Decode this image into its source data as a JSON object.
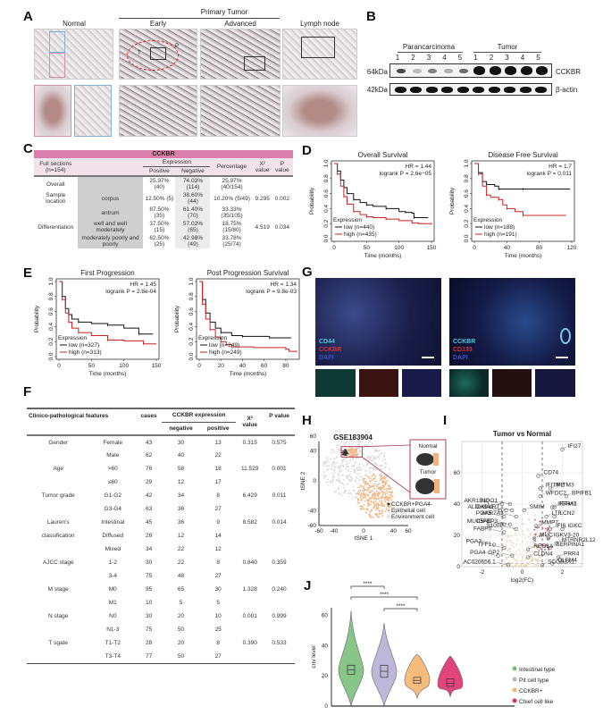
{
  "panels": {
    "A": {
      "letter": "A",
      "group_label": "Primary Tumor",
      "columns": [
        "Normal",
        "Early",
        "Advanced",
        "Lymph node"
      ],
      "annotations": [
        "T",
        "P"
      ]
    },
    "B": {
      "letter": "B",
      "groups": [
        "Parancarcinoma",
        "Tumor"
      ],
      "lanes": [
        "1",
        "2",
        "3",
        "4",
        "5",
        "1",
        "2",
        "3",
        "4",
        "5"
      ],
      "markers": [
        "64kDa",
        "42kDa"
      ],
      "proteins": [
        "CCKBR",
        "β-actin"
      ]
    },
    "C": {
      "letter": "C",
      "title": "CCKBR",
      "headers": {
        "full_sections": "Full sections",
        "n": "(n=154)",
        "expression": "Expression",
        "positive": "Positive",
        "negative": "Negative",
        "percentage": "Percentage",
        "chi": "X²",
        "chi2": "value",
        "p": "P value"
      },
      "rows": [
        {
          "feature": "Overall",
          "sub": "",
          "positive": "25.97% (40)",
          "negative": "74.03% (114)",
          "percentage": "25.97% (40/154)",
          "chi": "",
          "p": ""
        },
        {
          "feature": "Sample location",
          "sub": "corpus",
          "positive": "12.50% (5)",
          "negative": "38.60% (44)",
          "percentage": "10.20% (5/49)",
          "chi": "9.295",
          "p": "0.002"
        },
        {
          "feature": "",
          "sub": "antrum",
          "positive": "87.50% (35)",
          "negative": "61.40% (70)",
          "percentage": "33.33% (35/105)",
          "chi": "",
          "p": ""
        },
        {
          "feature": "Differentiation",
          "sub": "well and well moderately",
          "positive": "37.50% (15)",
          "negative": "57.02% (65)",
          "percentage": "18.75% (15/80)",
          "chi": "4.519",
          "p": "0.034"
        },
        {
          "feature": "",
          "sub": "moderately poorly and poorly",
          "positive": "62.50% (25)",
          "negative": "42.98% (49)",
          "percentage": "33.78% (25/74)",
          "chi": "",
          "p": ""
        }
      ]
    },
    "D": {
      "letter": "D"
    },
    "E": {
      "letter": "E"
    },
    "F": {
      "letter": "F",
      "headers": {
        "feature": "Clinico-pathological features",
        "cases": "cases",
        "expr": "CCKBR expression",
        "neg": "negative",
        "pos": "positive",
        "chi": "X²",
        "chi2": "value",
        "p": "P value"
      },
      "rows": [
        {
          "feature": "Gender",
          "sub": "Female",
          "cases": "43",
          "neg": "30",
          "pos": "13",
          "chi": "0.315",
          "p": "0.575"
        },
        {
          "feature": "",
          "sub": "Male",
          "cases": "62",
          "neg": "40",
          "pos": "22",
          "chi": "",
          "p": ""
        },
        {
          "feature": "Age",
          "sub": ">60",
          "cases": "76",
          "neg": "58",
          "pos": "18",
          "chi": "11.529",
          "p": "0.001"
        },
        {
          "feature": "",
          "sub": "≤60",
          "cases": "29",
          "neg": "12",
          "pos": "17",
          "chi": "",
          "p": ""
        },
        {
          "feature": "Tumor grade",
          "sub": "G1-G2",
          "cases": "42",
          "neg": "34",
          "pos": "8",
          "chi": "6.429",
          "p": "0.011"
        },
        {
          "feature": "",
          "sub": "G3-G4",
          "cases": "63",
          "neg": "36",
          "pos": "27",
          "chi": "",
          "p": ""
        },
        {
          "feature": "Lauren's",
          "sub": "Intestinal",
          "cases": "45",
          "neg": "36",
          "pos": "9",
          "chi": "8.582",
          "p": "0.014"
        },
        {
          "feature": "classification",
          "sub": "Diffused",
          "cases": "26",
          "neg": "12",
          "pos": "14",
          "chi": "",
          "p": ""
        },
        {
          "feature": "",
          "sub": "Mixed",
          "cases": "34",
          "neg": "22",
          "pos": "12",
          "chi": "",
          "p": ""
        },
        {
          "feature": "AJCC stage",
          "sub": "1-2",
          "cases": "30",
          "neg": "22",
          "pos": "8",
          "chi": "0.840",
          "p": "0.359"
        },
        {
          "feature": "",
          "sub": "3-4",
          "cases": "75",
          "neg": "48",
          "pos": "27",
          "chi": "",
          "p": ""
        },
        {
          "feature": "M stage",
          "sub": "M0",
          "cases": "95",
          "neg": "65",
          "pos": "30",
          "chi": "1.328",
          "p": "0.240"
        },
        {
          "feature": "",
          "sub": "M1",
          "cases": "10",
          "neg": "5",
          "pos": "5",
          "chi": "",
          "p": ""
        },
        {
          "feature": "N stage",
          "sub": "N0",
          "cases": "30",
          "neg": "20",
          "pos": "10",
          "chi": "0.001",
          "p": "0.999"
        },
        {
          "feature": "",
          "sub": "N1-3",
          "cases": "75",
          "neg": "50",
          "pos": "25",
          "chi": "",
          "p": ""
        },
        {
          "feature": "T sgate",
          "sub": "T1-T2",
          "cases": "28",
          "neg": "20",
          "pos": "8",
          "chi": "0.390",
          "p": "0.533"
        },
        {
          "feature": "",
          "sub": "T3-T4",
          "cases": "77",
          "neg": "50",
          "pos": "27",
          "chi": "",
          "p": ""
        }
      ]
    },
    "G": {
      "letter": "G",
      "left_labels": [
        "CD44",
        "CCKBR",
        "DAPI"
      ],
      "right_labels": [
        "CCKBR",
        "CD133",
        "DAPI"
      ]
    },
    "H": {
      "letter": "H",
      "title": "GSE183904",
      "inset_labels": [
        "Normal",
        "Tumor"
      ],
      "legend": [
        "CCKBR+PGA4-",
        "Epithelial cell",
        "Environment cell"
      ]
    },
    "I": {
      "letter": "I"
    },
    "J": {
      "letter": "J",
      "sig": "****"
    }
  },
  "chart_data": [
    {
      "id": "D1",
      "type": "line",
      "title": "Overall Survival",
      "xlabel": "Time (months)",
      "ylabel": "Probability",
      "xlim": [
        0,
        150
      ],
      "ylim": [
        0,
        1
      ],
      "xticks": [
        0,
        50,
        100,
        150
      ],
      "yticks": [
        0.0,
        0.2,
        0.4,
        0.6,
        0.8,
        1.0
      ],
      "annotation": [
        "HR = 1.44",
        "logrank P = 2.6e−05"
      ],
      "legend_title": "Expression",
      "series": [
        {
          "name": "low (n=440)",
          "color": "#111111",
          "x": [
            0,
            5,
            10,
            15,
            20,
            30,
            40,
            50,
            60,
            80,
            100,
            110,
            120,
            123,
            145
          ],
          "y": [
            1.0,
            0.9,
            0.78,
            0.68,
            0.6,
            0.52,
            0.48,
            0.45,
            0.43,
            0.4,
            0.36,
            0.35,
            0.34,
            0.28,
            0.28
          ]
        },
        {
          "name": "high (n=435)",
          "color": "#cc2222",
          "x": [
            0,
            5,
            10,
            15,
            20,
            30,
            40,
            50,
            60,
            80,
            100,
            120,
            130,
            150
          ],
          "y": [
            1.0,
            0.86,
            0.7,
            0.56,
            0.46,
            0.36,
            0.32,
            0.29,
            0.28,
            0.26,
            0.24,
            0.21,
            0.2,
            0.2
          ]
        }
      ]
    },
    {
      "id": "D2",
      "type": "line",
      "title": "Disease Free Survival",
      "xlabel": "Time (months)",
      "ylabel": "Probability",
      "xlim": [
        0,
        120
      ],
      "ylim": [
        0,
        1
      ],
      "xticks": [
        0,
        40,
        80,
        120
      ],
      "yticks": [
        0.0,
        0.2,
        0.4,
        0.6,
        0.8,
        1.0
      ],
      "annotation": [
        "HR = 1.7",
        "logrank P = 0.011"
      ],
      "legend_title": "Expression",
      "series": [
        {
          "name": "low (n=188)",
          "color": "#111111",
          "x": [
            0,
            5,
            10,
            15,
            25,
            30,
            35,
            60,
            118
          ],
          "y": [
            1.0,
            0.88,
            0.76,
            0.72,
            0.7,
            0.66,
            0.66,
            0.66,
            0.66
          ]
        },
        {
          "name": "high (n=191)",
          "color": "#cc2222",
          "x": [
            0,
            5,
            10,
            15,
            20,
            30,
            35,
            40,
            50,
            60,
            113
          ],
          "y": [
            1.0,
            0.86,
            0.7,
            0.58,
            0.55,
            0.52,
            0.45,
            0.4,
            0.36,
            0.31,
            0.31
          ]
        }
      ]
    },
    {
      "id": "E1",
      "type": "line",
      "title": "First Progression",
      "xlabel": "Time (months)",
      "ylabel": "Probability",
      "xlim": [
        0,
        150
      ],
      "ylim": [
        0,
        1
      ],
      "xticks": [
        0,
        50,
        100,
        150
      ],
      "yticks": [
        0.0,
        0.2,
        0.4,
        0.6,
        0.8,
        1.0
      ],
      "annotation": [
        "HR = 1.45",
        "logrank P = 2.8e-04"
      ],
      "legend_title": "Expression",
      "series": [
        {
          "name": "low (n=327)",
          "color": "#111111",
          "x": [
            0,
            5,
            10,
            15,
            20,
            30,
            50,
            75,
            100,
            123,
            145
          ],
          "y": [
            1.0,
            0.8,
            0.64,
            0.56,
            0.5,
            0.46,
            0.44,
            0.42,
            0.38,
            0.3,
            0.3
          ]
        },
        {
          "name": "high (n=313)",
          "color": "#cc2222",
          "x": [
            0,
            5,
            10,
            15,
            20,
            30,
            50,
            75,
            100,
            130,
            150
          ],
          "y": [
            1.0,
            0.76,
            0.58,
            0.46,
            0.38,
            0.32,
            0.28,
            0.22,
            0.21,
            0.17,
            0.17
          ]
        }
      ]
    },
    {
      "id": "E2",
      "type": "line",
      "title": "Post Progression Survival",
      "xlabel": "Time (months)",
      "ylabel": "Probability",
      "xlim": [
        0,
        90
      ],
      "ylim": [
        0,
        1
      ],
      "xticks": [
        0,
        20,
        40,
        60,
        80
      ],
      "yticks": [
        0.0,
        0.2,
        0.4,
        0.6,
        0.8,
        1.0
      ],
      "annotation": [
        "HR = 1.34",
        "logrank P = 9.8e-03"
      ],
      "legend_title": "Expression",
      "series": [
        {
          "name": "low (n=249)",
          "color": "#111111",
          "x": [
            0,
            3,
            6,
            10,
            15,
            20,
            30,
            40,
            60,
            65,
            85
          ],
          "y": [
            1.0,
            0.76,
            0.58,
            0.46,
            0.38,
            0.32,
            0.28,
            0.27,
            0.27,
            0.25,
            0.25
          ]
        },
        {
          "name": "high (n=249)",
          "color": "#cc2222",
          "x": [
            0,
            3,
            6,
            10,
            15,
            20,
            25,
            30,
            50,
            80,
            83,
            90
          ],
          "y": [
            1.0,
            0.7,
            0.5,
            0.36,
            0.26,
            0.2,
            0.16,
            0.13,
            0.12,
            0.1,
            0.07,
            0.07
          ]
        }
      ]
    },
    {
      "id": "H",
      "type": "scatter",
      "title": "GSE183904",
      "xlabel": "tSNE 1",
      "ylabel": "tSNE 2",
      "xlim": [
        -60,
        60
      ],
      "ylim": [
        -60,
        60
      ],
      "xticks": [
        -60,
        -40,
        0,
        40,
        60
      ],
      "yticks": [
        -60,
        -40,
        0,
        40,
        60
      ],
      "legend": [
        "CCKBR+PGA4-",
        "Epithelial cell",
        "Environment cell"
      ],
      "colors": [
        "#333333",
        "#f2b27a",
        "#d9d9d9"
      ]
    },
    {
      "id": "I",
      "type": "scatter",
      "title": "Tumor vs Normal",
      "xlabel": "log2(FC)",
      "ylabel": "-log10(pVal)",
      "xlim": [
        -3,
        3
      ],
      "ylim": [
        0,
        80
      ],
      "xticks": [
        -2,
        0,
        2
      ],
      "yticks": [
        0,
        20,
        40,
        60
      ],
      "thresholds_x": [
        -1,
        1
      ],
      "labels": [
        {
          "gene": "IFI27",
          "x": 2.0,
          "y": 75
        },
        {
          "gene": "CD74",
          "x": 0.8,
          "y": 58
        },
        {
          "gene": "IFITM3",
          "x": 1.4,
          "y": 50
        },
        {
          "gene": "IFITM2",
          "x": 0.9,
          "y": 50
        },
        {
          "gene": "WFDC2",
          "x": 0.9,
          "y": 45
        },
        {
          "gene": "BPIFB1",
          "x": 2.2,
          "y": 45
        },
        {
          "gene": "IFITM1",
          "x": 1.5,
          "y": 38
        },
        {
          "gene": "IGHA1",
          "x": 1.6,
          "y": 38
        },
        {
          "gene": "LTF",
          "x": 1.2,
          "y": 32
        },
        {
          "gene": "LCN2",
          "x": 1.6,
          "y": 32
        },
        {
          "gene": "IGKC",
          "x": 2.0,
          "y": 24
        },
        {
          "gene": "IFI6",
          "x": 1.4,
          "y": 24
        },
        {
          "gene": "IGKV3-20",
          "x": 1.3,
          "y": 18
        },
        {
          "gene": "MTRNR2L12",
          "x": 1.7,
          "y": 15
        },
        {
          "gene": "SERPINA1",
          "x": 1.4,
          "y": 12
        },
        {
          "gene": "PRR4",
          "x": 1.8,
          "y": 6
        },
        {
          "gene": "SCGB3A1",
          "x": 1.0,
          "y": 1
        },
        {
          "gene": "OLFM4",
          "x": 1.5,
          "y": 2
        },
        {
          "gene": "AKR1B10",
          "x": -1.0,
          "y": 40
        },
        {
          "gene": "NQO1",
          "x": -0.6,
          "y": 40
        },
        {
          "gene": "CA9",
          "x": -1.1,
          "y": 36
        },
        {
          "gene": "ALDH3A1",
          "x": -0.8,
          "y": 36
        },
        {
          "gene": "KRT",
          "x": -0.5,
          "y": 36
        },
        {
          "gene": "SMIM",
          "x": 0.1,
          "y": 36
        },
        {
          "gene": "PGA5",
          "x": -0.9,
          "y": 32
        },
        {
          "gene": "MUC5AC",
          "x": -0.9,
          "y": 27
        },
        {
          "gene": "IGFBP3",
          "x": -0.6,
          "y": 27
        },
        {
          "gene": "AKR7A3",
          "x": -0.3,
          "y": 32
        },
        {
          "gene": "MMP7",
          "x": 0.7,
          "y": 26
        },
        {
          "gene": "FABP5",
          "x": -0.9,
          "y": 22
        },
        {
          "gene": "S100P",
          "x": -0.3,
          "y": 24
        },
        {
          "gene": "PGA3",
          "x": -1.4,
          "y": 14
        },
        {
          "gene": "TFF1",
          "x": -0.9,
          "y": 12
        },
        {
          "gene": "REG1A",
          "x": 0.3,
          "y": 11
        },
        {
          "gene": "MUC",
          "x": 0.6,
          "y": 18
        },
        {
          "gene": "PGA4",
          "x": -1.2,
          "y": 7
        },
        {
          "gene": "GP2",
          "x": -0.5,
          "y": 7
        },
        {
          "gene": "CLDN4",
          "x": 0.3,
          "y": 6
        },
        {
          "gene": "AC020656.1",
          "x": -0.7,
          "y": 1
        }
      ]
    },
    {
      "id": "J",
      "type": "violin",
      "title": "",
      "xlabel": "",
      "ylabel": "cnv level",
      "ylim": [
        0,
        65
      ],
      "yticks": [
        0,
        20,
        40,
        60
      ],
      "categories": [
        "Intestinal type",
        "Pit cell type",
        "CCKBR+",
        "Chief cell like"
      ],
      "colors": [
        "#7cbf7c",
        "#b9b0d6",
        "#f5b56e",
        "#e0306e"
      ],
      "medians": [
        24,
        23,
        17,
        15
      ],
      "q1": [
        21,
        19,
        15,
        13
      ],
      "q3": [
        27,
        27,
        19,
        18
      ],
      "min": [
        0,
        0,
        5,
        6
      ],
      "max": [
        63,
        55,
        34,
        33
      ],
      "comparisons": [
        {
          "a": "Intestinal type",
          "b": "Pit cell type",
          "label": "****"
        },
        {
          "a": "Intestinal type",
          "b": "CCKBR+",
          "label": "****"
        },
        {
          "a": "Pit cell type",
          "b": "CCKBR+",
          "label": "****"
        }
      ]
    }
  ]
}
